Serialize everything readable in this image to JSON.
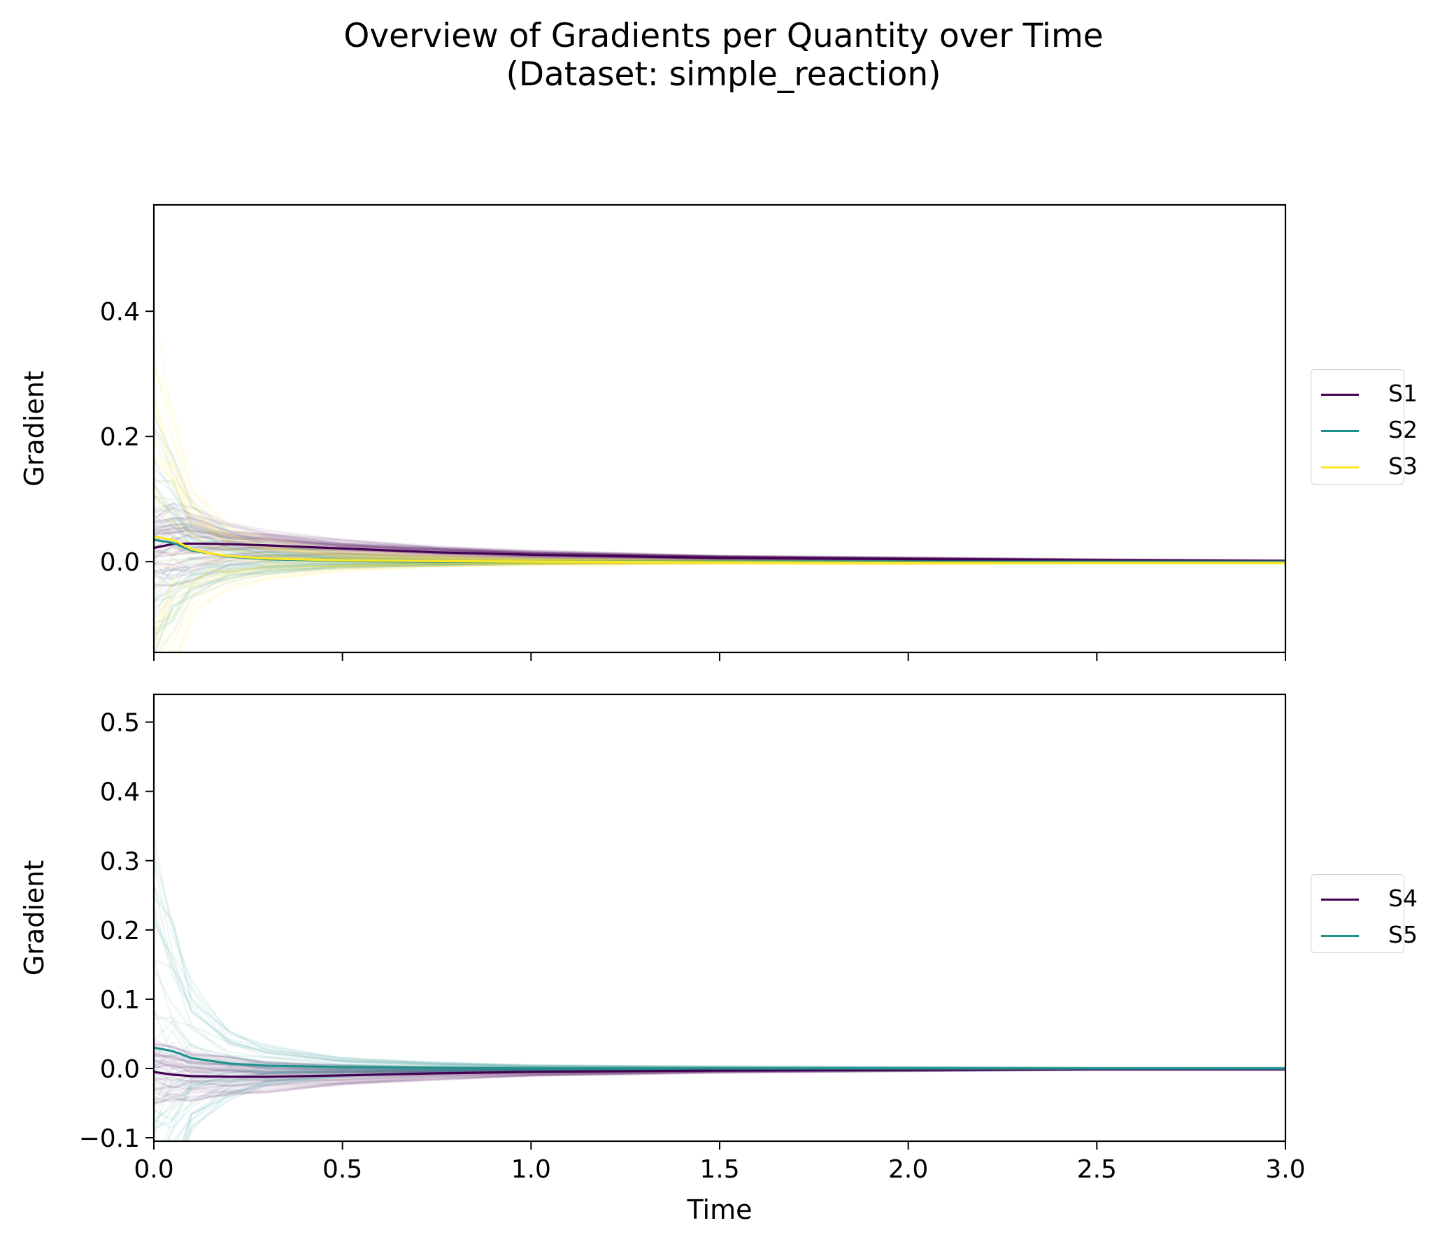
{
  "figure": {
    "title_line1": "Overview of Gradients per Quantity over Time",
    "title_line2": "(Dataset: simple_reaction)"
  },
  "chart_data": [
    {
      "type": "line",
      "ylabel": "Gradient",
      "xlabel": "",
      "xlim": [
        0.0,
        3.0
      ],
      "ylim": [
        -0.145,
        0.57
      ],
      "xticks": [
        0.0,
        0.5,
        1.0,
        1.5,
        2.0,
        2.5,
        3.0
      ],
      "show_xtick_labels": false,
      "yticks": [
        0.0,
        0.2,
        0.4
      ],
      "ytick_labels": [
        "0.0",
        "0.2",
        "0.4"
      ],
      "grid": false,
      "legend_position": "right",
      "note": "",
      "series": [
        {
          "name": "S1",
          "color": "#440154",
          "x": [
            0.0,
            0.05,
            0.1,
            0.2,
            0.3,
            0.5,
            0.75,
            1.0,
            1.5,
            2.0,
            2.5,
            3.0
          ],
          "y": [
            0.022,
            0.028,
            0.029,
            0.028,
            0.026,
            0.021,
            0.015,
            0.011,
            0.006,
            0.004,
            0.002,
            0.001
          ],
          "spread": [
            0.06,
            0.07,
            0.06,
            0.035,
            0.025,
            0.015,
            0.01,
            0.007,
            0.004,
            0.003,
            0.002,
            0.001
          ]
        },
        {
          "name": "S2",
          "color": "#21918c",
          "x": [
            0.0,
            0.05,
            0.1,
            0.2,
            0.3,
            0.5,
            0.75,
            1.0,
            1.5,
            2.0,
            2.5,
            3.0
          ],
          "y": [
            0.035,
            0.03,
            0.018,
            0.008,
            0.004,
            0.001,
            0.0,
            0.0,
            0.0,
            0.0,
            0.0,
            0.0
          ],
          "spread": [
            0.2,
            0.14,
            0.08,
            0.04,
            0.025,
            0.012,
            0.007,
            0.004,
            0.002,
            0.001,
            0.001,
            0.001
          ]
        },
        {
          "name": "S3",
          "color": "#fde725",
          "x": [
            0.0,
            0.05,
            0.1,
            0.15,
            0.2,
            0.3,
            0.5,
            0.75,
            1.0,
            1.5,
            2.0,
            2.5,
            3.0
          ],
          "y": [
            0.04,
            0.035,
            0.02,
            0.013,
            0.009,
            0.005,
            0.002,
            0.001,
            0.0,
            -0.001,
            -0.002,
            -0.002,
            -0.002
          ],
          "spread": [
            0.35,
            0.22,
            0.12,
            0.08,
            0.055,
            0.035,
            0.018,
            0.01,
            0.006,
            0.003,
            0.002,
            0.001,
            0.001
          ]
        }
      ]
    },
    {
      "type": "line",
      "ylabel": "Gradient",
      "xlabel": "Time",
      "xlim": [
        0.0,
        3.0
      ],
      "ylim": [
        -0.105,
        0.54
      ],
      "xticks": [
        0.0,
        0.5,
        1.0,
        1.5,
        2.0,
        2.5,
        3.0
      ],
      "xtick_labels": [
        "0.0",
        "0.5",
        "1.0",
        "1.5",
        "2.0",
        "2.5",
        "3.0"
      ],
      "show_xtick_labels": true,
      "yticks": [
        -0.1,
        0.0,
        0.1,
        0.2,
        0.3,
        0.4,
        0.5
      ],
      "ytick_labels": [
        "−0.1",
        "0.0",
        "0.1",
        "0.2",
        "0.3",
        "0.4",
        "0.5"
      ],
      "grid": false,
      "legend_position": "right",
      "series": [
        {
          "name": "S4",
          "color": "#440154",
          "x": [
            0.0,
            0.05,
            0.1,
            0.2,
            0.3,
            0.5,
            0.75,
            1.0,
            1.5,
            2.0,
            2.5,
            3.0
          ],
          "y": [
            -0.005,
            -0.009,
            -0.011,
            -0.012,
            -0.012,
            -0.01,
            -0.007,
            -0.005,
            -0.003,
            -0.002,
            -0.001,
            -0.001
          ],
          "spread": [
            0.045,
            0.04,
            0.035,
            0.028,
            0.022,
            0.014,
            0.009,
            0.006,
            0.003,
            0.002,
            0.001,
            0.001
          ]
        },
        {
          "name": "S5",
          "color": "#21918c",
          "x": [
            0.0,
            0.05,
            0.1,
            0.2,
            0.3,
            0.5,
            0.75,
            1.0,
            1.5,
            2.0,
            2.5,
            3.0
          ],
          "y": [
            0.03,
            0.025,
            0.015,
            0.007,
            0.004,
            0.002,
            0.001,
            0.0,
            0.0,
            0.0,
            0.0,
            0.0
          ],
          "spread": [
            0.3,
            0.2,
            0.11,
            0.05,
            0.03,
            0.014,
            0.008,
            0.005,
            0.003,
            0.002,
            0.001,
            0.001
          ]
        }
      ]
    }
  ]
}
